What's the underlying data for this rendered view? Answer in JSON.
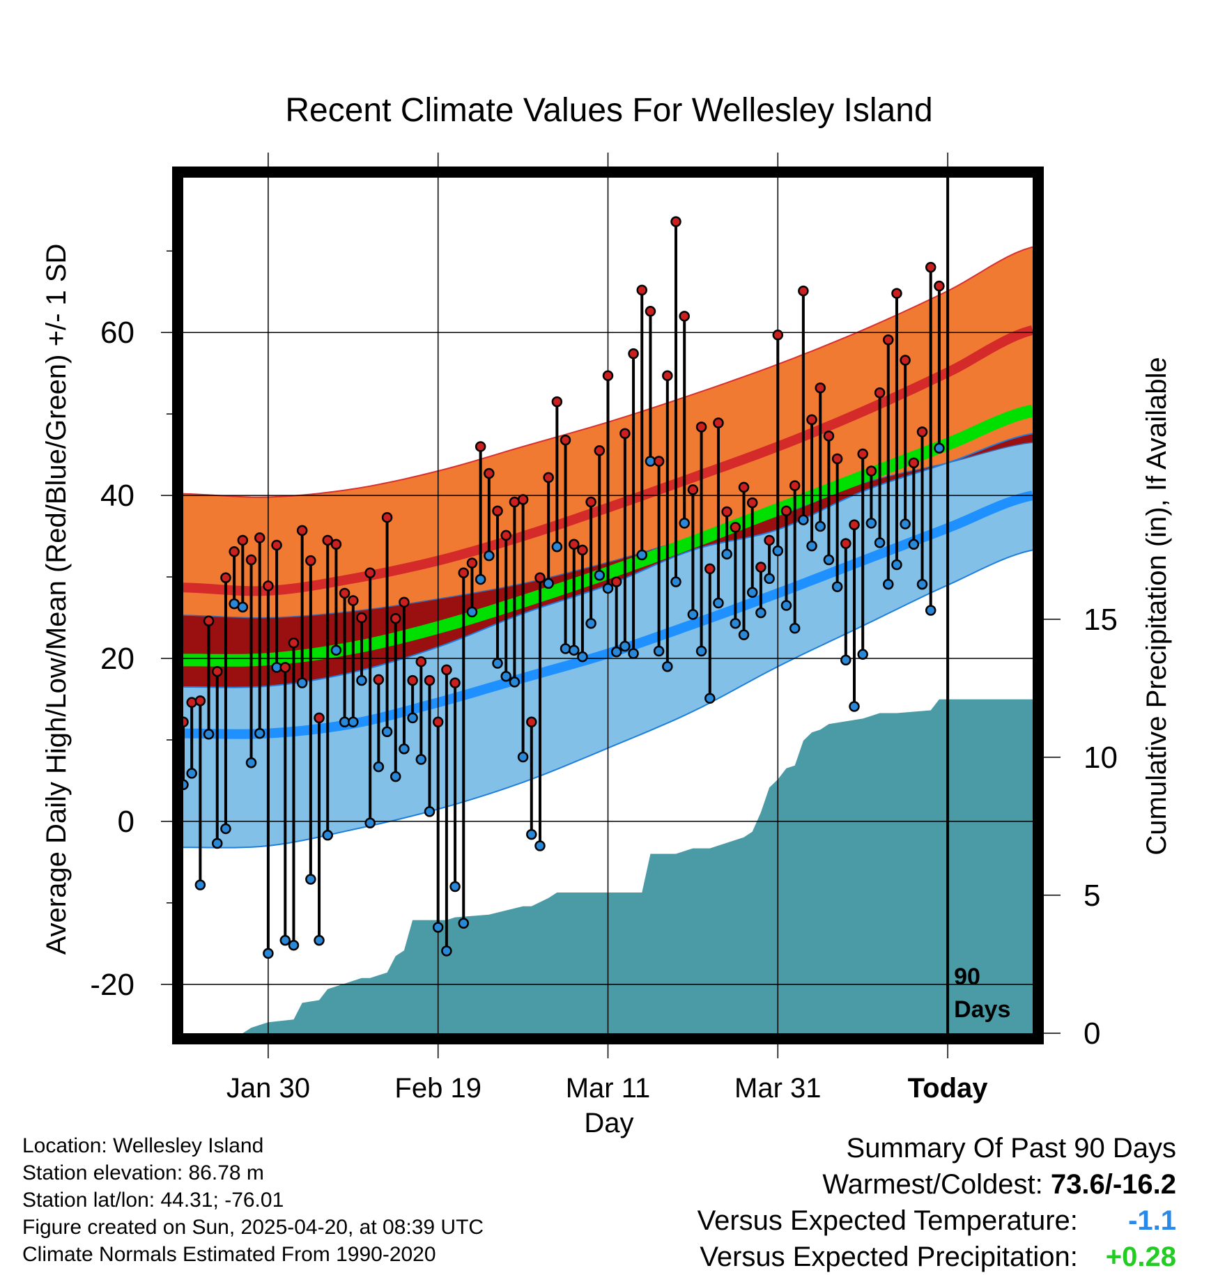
{
  "chart_data": {
    "type": "line",
    "title": "Recent Climate Values For Wellesley Island",
    "xlabel": "Day",
    "ylabel": "Average Daily High/Low/Mean (Red/Blue/Green) +/- 1 SD",
    "y2label": "Cumulative Precipitation (in), If Available",
    "x_ticks": [
      "Jan 30",
      "Feb 19",
      "Mar 11",
      "Mar 31",
      "Today"
    ],
    "x_tick_days": [
      10,
      30,
      50,
      70,
      90
    ],
    "xlim": [
      0,
      100
    ],
    "ylim": [
      -26,
      79
    ],
    "y_ticks": [
      -20,
      0,
      20,
      40,
      60
    ],
    "y2lim": [
      0,
      31
    ],
    "y2_ticks": [
      0,
      5,
      10,
      15
    ],
    "today_label": "90\nDays",
    "normals": {
      "days": [
        0,
        10,
        20,
        30,
        40,
        50,
        60,
        70,
        80,
        90,
        100
      ],
      "high_mean": [
        28.7,
        28.3,
        29.8,
        32.0,
        35.0,
        38.5,
        42.2,
        46.0,
        50.3,
        55.1,
        60.3
      ],
      "high_upper": [
        40.2,
        39.8,
        40.8,
        43.0,
        46.0,
        49.0,
        52.4,
        56.1,
        60.3,
        65.1,
        70.5
      ],
      "high_lower": [
        25.3,
        25.0,
        25.8,
        27.3,
        29.2,
        31.8,
        34.8,
        37.5,
        41.5,
        44.0,
        46.5
      ],
      "mean_mean": [
        19.8,
        19.9,
        21.3,
        23.8,
        27.0,
        30.5,
        34.3,
        38.3,
        42.3,
        46.3,
        50.4
      ],
      "low_mean": [
        10.8,
        10.8,
        12.0,
        14.6,
        17.6,
        20.6,
        24.2,
        28.0,
        32.0,
        36.0,
        40.0
      ],
      "low_upper": [
        16.5,
        16.6,
        18.3,
        21.4,
        25.5,
        29.0,
        33.3,
        35.8,
        40.5,
        44.0,
        47.6
      ],
      "low_lower": [
        -3.2,
        -3.0,
        -1.0,
        1.5,
        4.8,
        9.0,
        13.5,
        19.0,
        24.0,
        29.0,
        33.3
      ]
    },
    "series": [
      {
        "name": "High",
        "color": "#cc2020",
        "values": [
          12.2,
          14.6,
          14.8,
          24.6,
          18.4,
          29.9,
          33.1,
          34.5,
          32.1,
          34.8,
          28.9,
          33.9,
          18.9,
          21.9,
          35.7,
          32.0,
          12.7,
          34.5,
          34.0,
          28.0,
          27.1,
          25.0,
          30.5,
          17.4,
          37.3,
          24.9,
          26.9,
          17.3,
          19.6,
          17.3,
          12.2,
          18.6,
          17.0,
          30.5,
          31.7,
          46.0,
          42.7,
          38.1,
          35.1,
          39.2,
          39.5,
          12.2,
          29.9,
          42.2,
          51.5,
          46.8,
          34.0,
          33.3,
          39.2,
          45.5,
          54.7,
          29.4,
          47.6,
          57.4,
          65.2,
          62.6,
          44.2,
          54.7,
          73.6,
          62.0,
          40.7,
          48.4,
          31.0,
          48.9,
          38.0,
          36.1,
          41.0,
          39.1,
          31.2,
          34.5,
          59.7,
          38.1,
          41.2,
          65.1,
          49.3,
          53.2,
          47.3,
          44.5,
          34.1,
          36.4,
          45.1,
          43.0,
          52.6,
          59.1,
          64.8,
          56.6,
          44.0,
          47.8,
          68.0,
          65.7
        ]
      },
      {
        "name": "Low",
        "color": "#2a88d8",
        "values": [
          4.5,
          5.9,
          -7.8,
          10.7,
          -2.7,
          -0.9,
          26.7,
          26.3,
          7.2,
          10.8,
          -16.2,
          18.9,
          -14.6,
          -15.2,
          17.0,
          -7.1,
          -14.6,
          -1.7,
          21.0,
          12.2,
          12.2,
          17.3,
          -0.2,
          6.7,
          11.0,
          5.5,
          8.9,
          12.7,
          7.6,
          1.2,
          -13.0,
          -15.9,
          -8.0,
          -12.5,
          25.7,
          29.7,
          32.6,
          19.4,
          17.8,
          17.1,
          7.9,
          -1.6,
          -3.0,
          29.2,
          33.7,
          21.2,
          21.0,
          20.2,
          24.3,
          30.2,
          28.6,
          20.8,
          21.5,
          20.6,
          32.7,
          44.2,
          20.9,
          19.0,
          29.4,
          36.6,
          25.4,
          20.9,
          15.1,
          26.8,
          32.8,
          24.3,
          22.9,
          28.1,
          25.6,
          29.8,
          33.2,
          26.5,
          23.7,
          37.0,
          33.8,
          36.2,
          32.1,
          28.8,
          19.8,
          14.1,
          20.5,
          36.6,
          34.2,
          29.1,
          31.5,
          36.5,
          34.0,
          29.1,
          25.9,
          45.8
        ]
      }
    ],
    "precipitation": {
      "days": [
        0,
        7,
        8,
        9,
        10,
        13,
        14,
        16,
        17,
        18,
        19,
        20,
        21,
        22,
        23,
        24,
        25,
        26,
        27,
        28,
        29,
        31,
        32,
        36,
        40,
        41,
        43,
        44,
        45,
        47,
        50,
        54,
        55,
        58,
        60,
        62,
        66,
        67,
        68,
        69,
        70,
        71,
        72,
        73,
        74,
        75,
        76,
        80,
        81,
        82,
        84,
        88,
        89,
        100
      ],
      "values": [
        0,
        0,
        0.2,
        0.3,
        0.4,
        0.5,
        1.1,
        1.2,
        1.6,
        1.7,
        1.8,
        1.9,
        2.0,
        2.0,
        2.1,
        2.2,
        2.8,
        3.0,
        4.1,
        4.1,
        4.1,
        4.1,
        4.2,
        4.3,
        4.6,
        4.6,
        4.9,
        5.1,
        5.1,
        5.1,
        5.1,
        5.1,
        6.5,
        6.5,
        6.7,
        6.7,
        7.1,
        7.3,
        8.0,
        8.9,
        9.2,
        9.6,
        9.7,
        10.6,
        10.9,
        11.0,
        11.2,
        11.4,
        11.5,
        11.6,
        11.6,
        11.7,
        12.1,
        12.1
      ]
    }
  },
  "info": {
    "location": "Location: Wellesley Island",
    "elevation": "Station elevation: 86.78 m",
    "latlon": "Station lat/lon: 44.31; -76.01",
    "created": "Figure created on Sun, 2025-04-20, at 08:39 UTC",
    "normals": "Climate Normals Estimated From 1990-2020"
  },
  "summary": {
    "heading": "Summary Of Past 90 Days",
    "warm_cold_label": "Warmest/Coldest:",
    "warm_cold_value": "73.6/-16.2",
    "temp_label": "Versus Expected Temperature:",
    "temp_value": "-1.1",
    "temp_color": "#2a88e8",
    "precip_label": "Versus Expected Precipitation:",
    "precip_value": "+0.28",
    "precip_color": "#22cc22"
  },
  "colors": {
    "high_band": "#f07a32",
    "high_line": "#d42a2a",
    "overlap_band": "#9a1010",
    "mean_line": "#00e000",
    "low_band": "#82c0e8",
    "low_line": "#1e90ff",
    "precip_fill": "#4a9ba5"
  }
}
